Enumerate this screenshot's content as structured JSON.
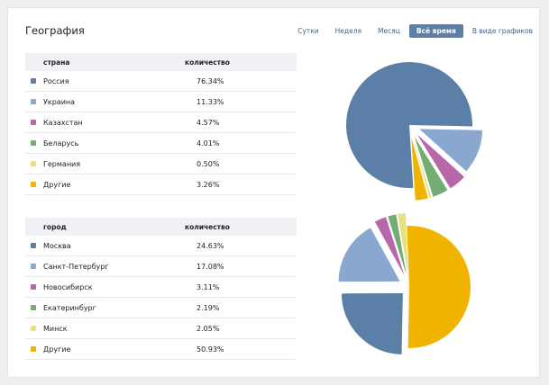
{
  "title": "География",
  "periods": [
    {
      "label": "Сутки",
      "active": false
    },
    {
      "label": "Неделя",
      "active": false
    },
    {
      "label": "Месяц",
      "active": false
    },
    {
      "label": "Всё время",
      "active": true
    },
    {
      "label": "В виде графиков",
      "active": false
    }
  ],
  "country_table": {
    "header": {
      "name": "страна",
      "value": "количество"
    },
    "rows": [
      {
        "name": "Россия",
        "value": "76.34%",
        "color": "#5b7fa6"
      },
      {
        "name": "Украина",
        "value": "11.33%",
        "color": "#8aa7cf"
      },
      {
        "name": "Казахстан",
        "value": "4.57%",
        "color": "#b868a9"
      },
      {
        "name": "Беларусь",
        "value": "4.01%",
        "color": "#74ad74"
      },
      {
        "name": "Германия",
        "value": "0.50%",
        "color": "#e9e07f"
      },
      {
        "name": "Другие",
        "value": "3.26%",
        "color": "#f0b400"
      }
    ]
  },
  "city_table": {
    "header": {
      "name": "город",
      "value": "количество"
    },
    "rows": [
      {
        "name": "Москва",
        "value": "24.63%",
        "color": "#5b7fa6"
      },
      {
        "name": "Санкт-Петербург",
        "value": "17.08%",
        "color": "#8aa7cf"
      },
      {
        "name": "Новосибирск",
        "value": "3.11%",
        "color": "#b868a9"
      },
      {
        "name": "Екатеринбург",
        "value": "2.19%",
        "color": "#74ad74"
      },
      {
        "name": "Минск",
        "value": "2.05%",
        "color": "#e9e07f"
      },
      {
        "name": "Другие",
        "value": "50.93%",
        "color": "#f0b400"
      }
    ]
  },
  "chart_data": [
    {
      "type": "pie",
      "labels": [
        "Россия",
        "Украина",
        "Казахстан",
        "Беларусь",
        "Германия",
        "Другие"
      ],
      "values": [
        76.34,
        11.33,
        4.57,
        4.01,
        0.5,
        3.26
      ],
      "colors": [
        "#5b7fa6",
        "#8aa7cf",
        "#b868a9",
        "#74ad74",
        "#e9e07f",
        "#f0b400"
      ]
    },
    {
      "type": "pie",
      "labels": [
        "Москва",
        "Санкт-Петербург",
        "Новосибирск",
        "Екатеринбург",
        "Минск",
        "Другие"
      ],
      "values": [
        24.63,
        17.08,
        3.11,
        2.19,
        2.05,
        50.93
      ],
      "colors": [
        "#5b7fa6",
        "#8aa7cf",
        "#b868a9",
        "#74ad74",
        "#e9e07f",
        "#f0b400"
      ]
    }
  ]
}
